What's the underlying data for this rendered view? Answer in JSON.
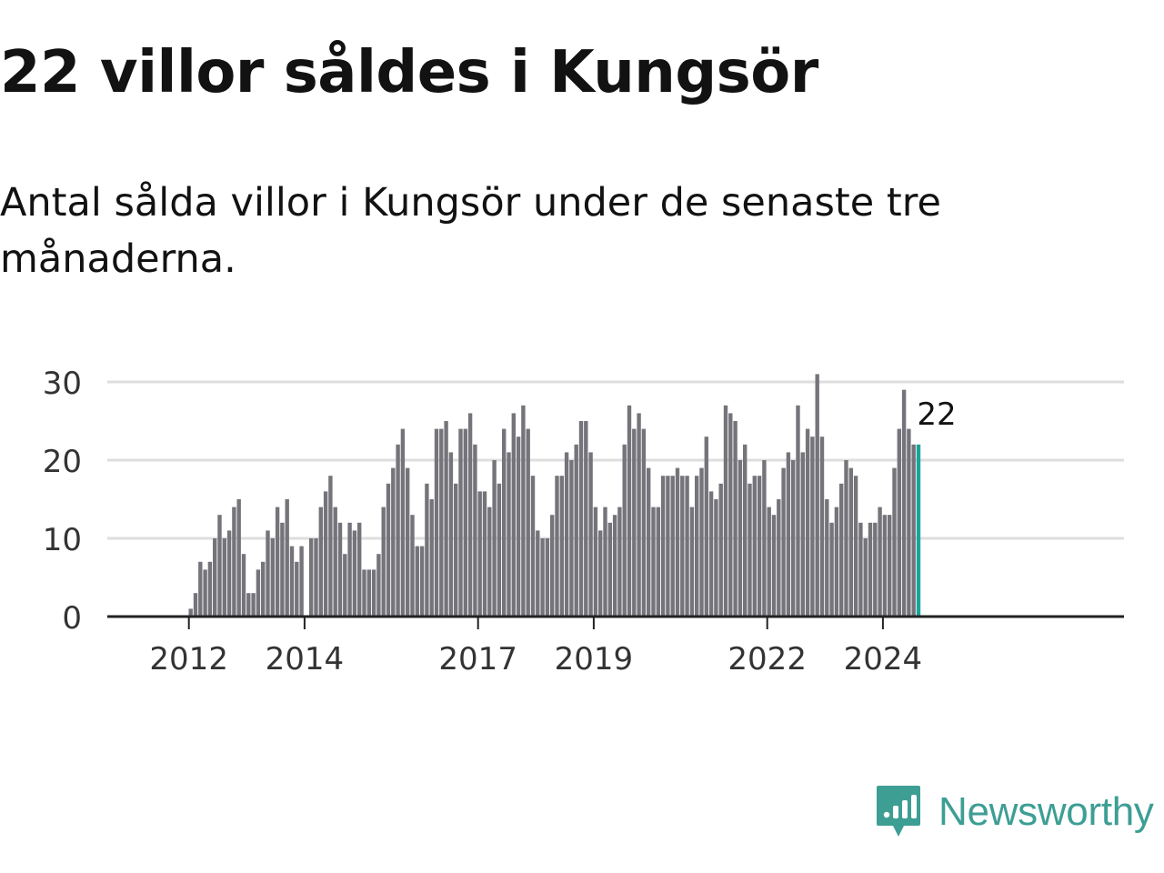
{
  "title": "22 villor såldes i Kungsör",
  "subtitle": "Antal sålda villor i Kungsör under de senaste tre månaderna.",
  "brand": {
    "name": "Newsworthy",
    "color": "#3d9e94",
    "icon": "newsworthy-logo-icon"
  },
  "colors": {
    "bar": "#75747b",
    "highlight": "#1aa39a",
    "grid": "#dedede",
    "axis": "#222222",
    "text": "#121212"
  },
  "chart_data": {
    "type": "bar",
    "title": "22 villor såldes i Kungsör",
    "subtitle": "Antal sålda villor i Kungsör under de senaste tre månaderna.",
    "xlabel": "",
    "ylabel": "",
    "ylim": [
      0,
      30
    ],
    "yticks": [
      0,
      10,
      20,
      30
    ],
    "xticks": [
      2012,
      2014,
      2017,
      2019,
      2022,
      2024
    ],
    "grid": true,
    "legend": "none",
    "start": "2011-05",
    "frequency": "monthly",
    "values": [
      null,
      null,
      null,
      null,
      null,
      null,
      null,
      null,
      1,
      3,
      7,
      6,
      7,
      10,
      13,
      10,
      11,
      14,
      15,
      8,
      3,
      3,
      6,
      7,
      11,
      10,
      14,
      12,
      15,
      9,
      7,
      9,
      null,
      10,
      10,
      14,
      16,
      18,
      14,
      12,
      8,
      12,
      11,
      12,
      6,
      6,
      6,
      8,
      14,
      17,
      19,
      22,
      24,
      19,
      13,
      9,
      9,
      17,
      15,
      24,
      24,
      25,
      21,
      17,
      24,
      24,
      26,
      22,
      16,
      16,
      14,
      20,
      17,
      24,
      21,
      26,
      23,
      27,
      24,
      18,
      11,
      10,
      10,
      13,
      18,
      18,
      21,
      20,
      22,
      25,
      25,
      21,
      14,
      11,
      14,
      12,
      13,
      14,
      22,
      27,
      24,
      26,
      24,
      19,
      14,
      14,
      18,
      18,
      18,
      19,
      18,
      18,
      14,
      18,
      19,
      23,
      16,
      15,
      17,
      27,
      26,
      25,
      20,
      22,
      17,
      18,
      18,
      20,
      14,
      13,
      15,
      19,
      21,
      20,
      27,
      21,
      24,
      23,
      31,
      23,
      15,
      12,
      14,
      17,
      20,
      19,
      18,
      12,
      10,
      12,
      12,
      14,
      13,
      13,
      19,
      24,
      29,
      24,
      22,
      22
    ],
    "highlight": {
      "last_n": 1,
      "label": "22"
    }
  }
}
